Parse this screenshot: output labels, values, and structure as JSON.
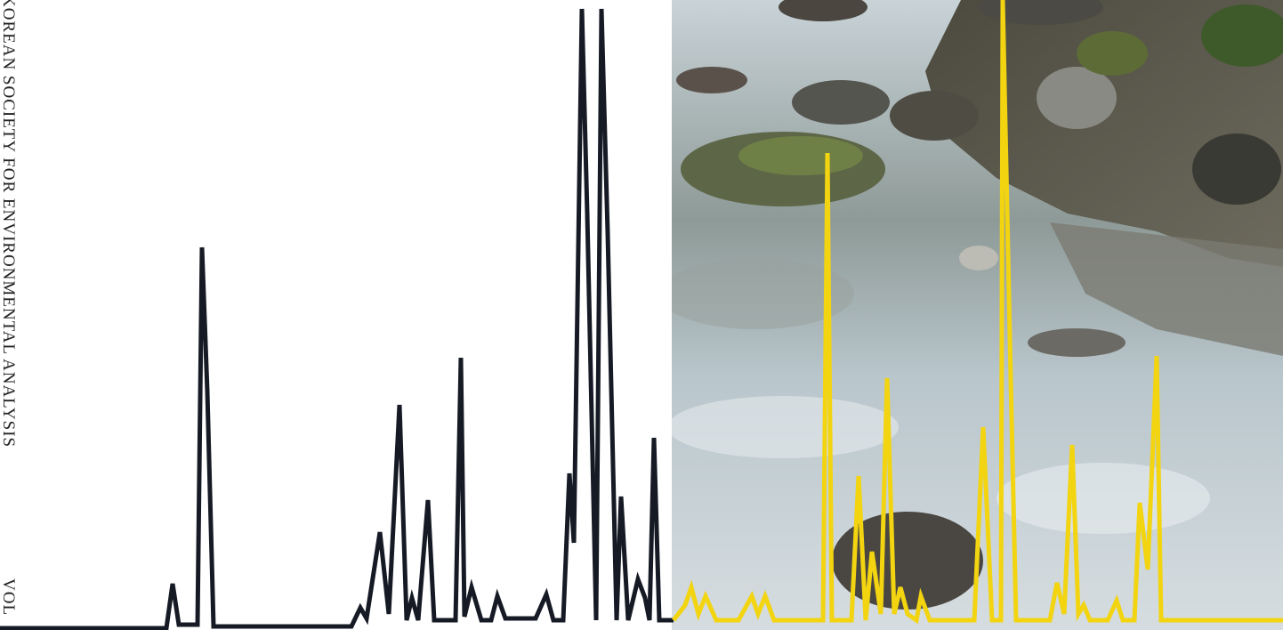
{
  "cover": {
    "society": "KOREAN SOCIETY FOR ENVIRONMENTAL ANALYSIS",
    "volume": "VOL"
  }
}
